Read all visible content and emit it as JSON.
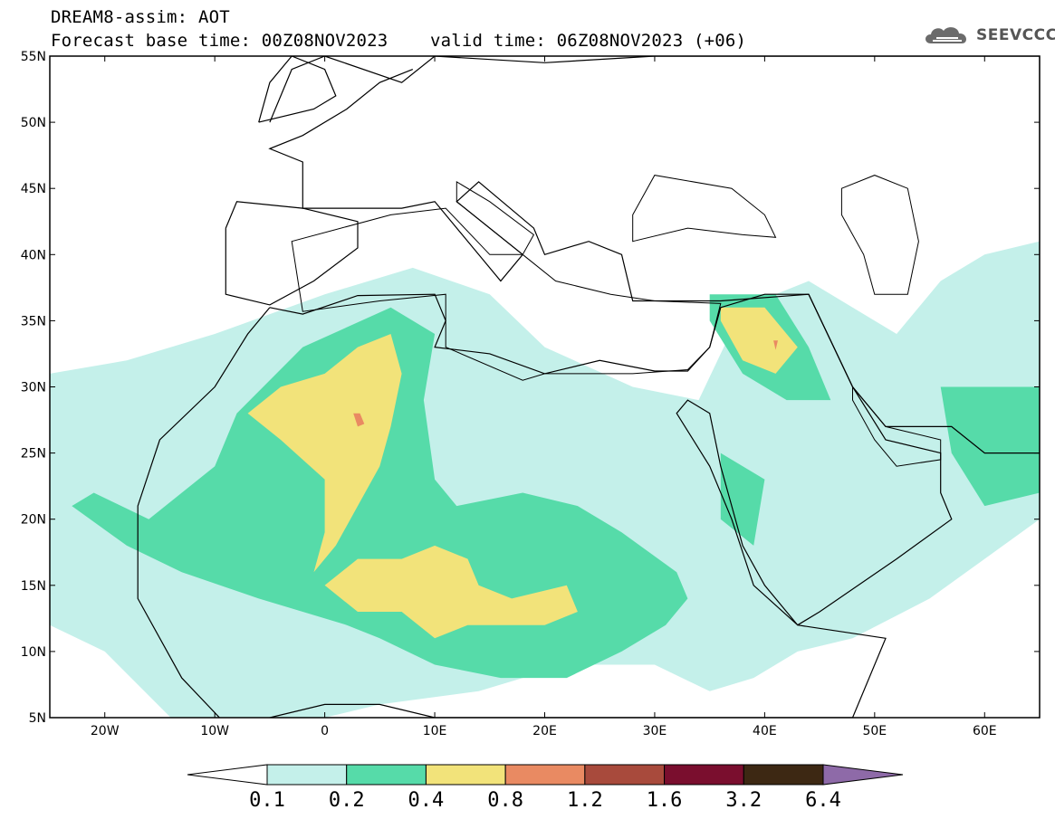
{
  "header": {
    "title_line1": "DREAM8-assim: AOT",
    "title_line2": "Forecast base time: 00Z08NOV2023    valid time: 06Z08NOV2023 (+06)",
    "logo_text": "SEEVCCC"
  },
  "map": {
    "projection": "equirectangular",
    "lon_range": [
      -25,
      65
    ],
    "lat_range": [
      5,
      55
    ],
    "lat_ticks": [
      {
        "value": 55,
        "label": "55N"
      },
      {
        "value": 50,
        "label": "50N"
      },
      {
        "value": 45,
        "label": "45N"
      },
      {
        "value": 40,
        "label": "40N"
      },
      {
        "value": 35,
        "label": "35N"
      },
      {
        "value": 30,
        "label": "30N"
      },
      {
        "value": 25,
        "label": "25N"
      },
      {
        "value": 20,
        "label": "20N"
      },
      {
        "value": 15,
        "label": "15N"
      },
      {
        "value": 10,
        "label": "10N"
      },
      {
        "value": 5,
        "label": "5N"
      }
    ],
    "lon_ticks": [
      {
        "value": -20,
        "label": "20W"
      },
      {
        "value": -10,
        "label": "10W"
      },
      {
        "value": 0,
        "label": "0"
      },
      {
        "value": 10,
        "label": "10E"
      },
      {
        "value": 20,
        "label": "20E"
      },
      {
        "value": 30,
        "label": "30E"
      },
      {
        "value": 40,
        "label": "40E"
      },
      {
        "value": 50,
        "label": "50E"
      },
      {
        "value": 60,
        "label": "60E"
      }
    ],
    "field_regions": [
      {
        "level": 0.1,
        "color": "#c4f0ea",
        "points": [
          [
            -25,
            31
          ],
          [
            -18,
            32
          ],
          [
            -10,
            34
          ],
          [
            0,
            37
          ],
          [
            8,
            39
          ],
          [
            15,
            37
          ],
          [
            20,
            33
          ],
          [
            28,
            30
          ],
          [
            34,
            29
          ],
          [
            38,
            36
          ],
          [
            44,
            38
          ],
          [
            48,
            36
          ],
          [
            52,
            34
          ],
          [
            56,
            38
          ],
          [
            60,
            40
          ],
          [
            65,
            41
          ],
          [
            65,
            20
          ],
          [
            60,
            17
          ],
          [
            55,
            14
          ],
          [
            48,
            11
          ],
          [
            43,
            10
          ],
          [
            39,
            8
          ],
          [
            35,
            7
          ],
          [
            30,
            9
          ],
          [
            22,
            9
          ],
          [
            14,
            7
          ],
          [
            5,
            6
          ],
          [
            0,
            5
          ],
          [
            -8,
            5
          ],
          [
            -14,
            5
          ],
          [
            -20,
            10
          ],
          [
            -25,
            12
          ]
        ]
      },
      {
        "level": 0.2,
        "color": "#56dba9",
        "points": [
          [
            -23,
            21
          ],
          [
            -18,
            18
          ],
          [
            -13,
            16
          ],
          [
            -6,
            14
          ],
          [
            -2,
            13
          ],
          [
            2,
            12
          ],
          [
            5,
            11
          ],
          [
            10,
            9
          ],
          [
            16,
            8
          ],
          [
            22,
            8
          ],
          [
            27,
            10
          ],
          [
            31,
            12
          ],
          [
            33,
            14
          ],
          [
            32,
            16
          ],
          [
            27,
            19
          ],
          [
            23,
            21
          ],
          [
            18,
            22
          ],
          [
            12,
            21
          ],
          [
            10,
            23
          ],
          [
            9,
            29
          ],
          [
            10,
            34
          ],
          [
            6,
            36
          ],
          [
            -2,
            33
          ],
          [
            -8,
            28
          ],
          [
            -10,
            24
          ],
          [
            -16,
            20
          ],
          [
            -21,
            22
          ]
        ]
      },
      {
        "level": 0.2,
        "color": "#56dba9",
        "points": [
          [
            35,
            37
          ],
          [
            41,
            37
          ],
          [
            44,
            33
          ],
          [
            46,
            29
          ],
          [
            42,
            29
          ],
          [
            38,
            31
          ],
          [
            35,
            35
          ]
        ]
      },
      {
        "level": 0.2,
        "color": "#56dba9",
        "points": [
          [
            36,
            25
          ],
          [
            40,
            23
          ],
          [
            39,
            18
          ],
          [
            36,
            20
          ]
        ]
      },
      {
        "level": 0.2,
        "color": "#56dba9",
        "points": [
          [
            56,
            30
          ],
          [
            65,
            30
          ],
          [
            65,
            22
          ],
          [
            60,
            21
          ],
          [
            57,
            25
          ]
        ]
      },
      {
        "level": 0.4,
        "color": "#f2e37a",
        "points": [
          [
            -7,
            28
          ],
          [
            -4,
            30
          ],
          [
            0,
            31
          ],
          [
            3,
            33
          ],
          [
            6,
            34
          ],
          [
            7,
            31
          ],
          [
            6,
            27
          ],
          [
            5,
            24
          ],
          [
            3,
            21
          ],
          [
            1,
            18
          ],
          [
            -1,
            16
          ],
          [
            0,
            19
          ],
          [
            0,
            23
          ],
          [
            -4,
            26
          ]
        ]
      },
      {
        "level": 0.4,
        "color": "#f2e37a",
        "points": [
          [
            0,
            15
          ],
          [
            3,
            17
          ],
          [
            7,
            17
          ],
          [
            10,
            18
          ],
          [
            13,
            17
          ],
          [
            14,
            15
          ],
          [
            17,
            14
          ],
          [
            22,
            15
          ],
          [
            23,
            13
          ],
          [
            20,
            12
          ],
          [
            13,
            12
          ],
          [
            10,
            11
          ],
          [
            7,
            13
          ],
          [
            3,
            13
          ]
        ]
      },
      {
        "level": 0.4,
        "color": "#f2e37a",
        "points": [
          [
            36,
            36
          ],
          [
            40,
            36
          ],
          [
            43,
            33
          ],
          [
            41,
            31
          ],
          [
            38,
            32
          ],
          [
            36,
            35
          ]
        ]
      },
      {
        "level": 0.8,
        "color": "#e98a62",
        "points": [
          [
            2.6,
            28
          ],
          [
            3.2,
            28
          ],
          [
            3.6,
            27.2
          ],
          [
            3.0,
            27.0
          ]
        ]
      },
      {
        "level": 0.8,
        "color": "#e98a62",
        "points": [
          [
            40.8,
            33.5
          ],
          [
            41.2,
            33.5
          ],
          [
            41.0,
            32.8
          ]
        ]
      }
    ],
    "landmass_outlines": [
      [
        [
          -9,
          42
        ],
        [
          -8,
          44
        ],
        [
          -2,
          43.5
        ],
        [
          3,
          42.5
        ],
        [
          3,
          40.5
        ],
        [
          -1,
          38
        ],
        [
          -5,
          36.2
        ],
        [
          -9,
          37
        ],
        [
          -9,
          42
        ]
      ],
      [
        [
          -5,
          36
        ],
        [
          -2,
          35.5
        ],
        [
          3,
          36.9
        ],
        [
          10,
          37
        ],
        [
          11,
          35
        ],
        [
          10,
          33
        ],
        [
          15,
          32.5
        ],
        [
          20,
          31
        ],
        [
          25,
          32
        ],
        [
          30,
          31.2
        ],
        [
          33,
          31.2
        ],
        [
          35,
          33
        ],
        [
          36,
          36
        ],
        [
          40,
          37
        ],
        [
          44,
          37
        ],
        [
          48,
          30
        ],
        [
          51,
          26
        ],
        [
          56,
          25
        ],
        [
          56,
          22
        ],
        [
          57,
          20
        ],
        [
          52,
          17
        ],
        [
          45,
          13
        ],
        [
          43,
          12
        ],
        [
          40,
          15
        ],
        [
          38,
          18
        ],
        [
          37,
          21
        ],
        [
          36,
          24
        ],
        [
          35,
          28
        ],
        [
          33,
          29
        ],
        [
          32,
          28
        ],
        [
          35,
          24
        ],
        [
          37,
          20
        ],
        [
          39,
          15
        ],
        [
          43,
          12
        ],
        [
          51,
          11
        ],
        [
          48,
          5
        ],
        [
          40,
          5
        ],
        [
          35,
          5
        ],
        [
          25,
          5
        ],
        [
          10,
          5
        ],
        [
          5,
          6
        ],
        [
          0,
          6
        ],
        [
          -5,
          5
        ],
        [
          -9,
          4.5
        ],
        [
          -13,
          8
        ],
        [
          -17,
          14
        ],
        [
          -17,
          21
        ],
        [
          -15,
          26
        ],
        [
          -10,
          30
        ],
        [
          -7,
          34
        ],
        [
          -5,
          36
        ]
      ],
      [
        [
          -5,
          50
        ],
        [
          -3,
          54
        ],
        [
          0,
          55
        ],
        [
          7,
          53
        ],
        [
          10,
          55
        ],
        [
          20,
          54.5
        ],
        [
          30,
          55
        ],
        [
          40,
          55
        ],
        [
          50,
          55
        ],
        [
          60,
          55
        ],
        [
          65,
          55
        ],
        [
          65,
          25
        ],
        [
          60,
          25
        ],
        [
          57,
          27
        ],
        [
          51,
          27
        ],
        [
          48,
          30
        ],
        [
          44,
          37
        ],
        [
          36,
          36.5
        ],
        [
          28,
          36.5
        ],
        [
          27,
          40
        ],
        [
          24,
          41
        ],
        [
          20,
          40
        ],
        [
          19,
          42
        ],
        [
          14,
          45.5
        ],
        [
          12,
          44
        ],
        [
          18,
          40
        ],
        [
          16,
          38
        ],
        [
          14,
          40
        ],
        [
          10,
          44
        ],
        [
          7,
          43.5
        ],
        [
          3,
          43.5
        ],
        [
          -2,
          43.5
        ],
        [
          -2,
          47
        ],
        [
          -5,
          48
        ],
        [
          -2,
          49
        ],
        [
          2,
          51
        ],
        [
          5,
          53
        ],
        [
          8,
          54
        ]
      ],
      [
        [
          -6,
          50
        ],
        [
          -5,
          53
        ],
        [
          -3,
          55
        ],
        [
          0,
          54
        ],
        [
          1,
          52
        ],
        [
          -1,
          51
        ],
        [
          -6,
          50
        ]
      ]
    ],
    "sea_overlays": [
      [
        [
          -3,
          41
        ],
        [
          6,
          43
        ],
        [
          11,
          43.5
        ],
        [
          15,
          40
        ],
        [
          18,
          40
        ],
        [
          21,
          38
        ],
        [
          26,
          37
        ],
        [
          30,
          36.5
        ],
        [
          36,
          36.3
        ],
        [
          35,
          33
        ],
        [
          33,
          31.3
        ],
        [
          28,
          31
        ],
        [
          20,
          31
        ],
        [
          18,
          30.5
        ],
        [
          11,
          33
        ],
        [
          11,
          37
        ],
        [
          5,
          36.5
        ],
        [
          -2,
          35.7
        ]
      ],
      [
        [
          28,
          41
        ],
        [
          33,
          42
        ],
        [
          38,
          41.5
        ],
        [
          41,
          41.3
        ],
        [
          40,
          43
        ],
        [
          37,
          45
        ],
        [
          30,
          46
        ],
        [
          28,
          43
        ]
      ],
      [
        [
          47,
          45
        ],
        [
          50,
          46
        ],
        [
          53,
          45
        ],
        [
          54,
          41
        ],
        [
          53,
          37
        ],
        [
          50,
          37
        ],
        [
          49,
          40
        ],
        [
          47,
          43
        ]
      ],
      [
        [
          12,
          45.5
        ],
        [
          15,
          44
        ],
        [
          19,
          41.5
        ],
        [
          18,
          40
        ],
        [
          15,
          42
        ],
        [
          12,
          44
        ]
      ],
      [
        [
          48,
          30
        ],
        [
          51,
          27
        ],
        [
          56,
          26
        ],
        [
          56,
          24.5
        ],
        [
          52,
          24
        ],
        [
          50,
          26
        ],
        [
          48,
          29
        ]
      ]
    ]
  },
  "colorbar": {
    "levels": [
      "0.1",
      "0.2",
      "0.4",
      "0.8",
      "1.2",
      "1.6",
      "3.2",
      "6.4"
    ],
    "colors": [
      "#ffffff",
      "#c4f0ea",
      "#56dba9",
      "#f2e37a",
      "#e98a62",
      "#a84a3c",
      "#7a0e2e",
      "#3d2813",
      "#8e6aa8"
    ]
  }
}
